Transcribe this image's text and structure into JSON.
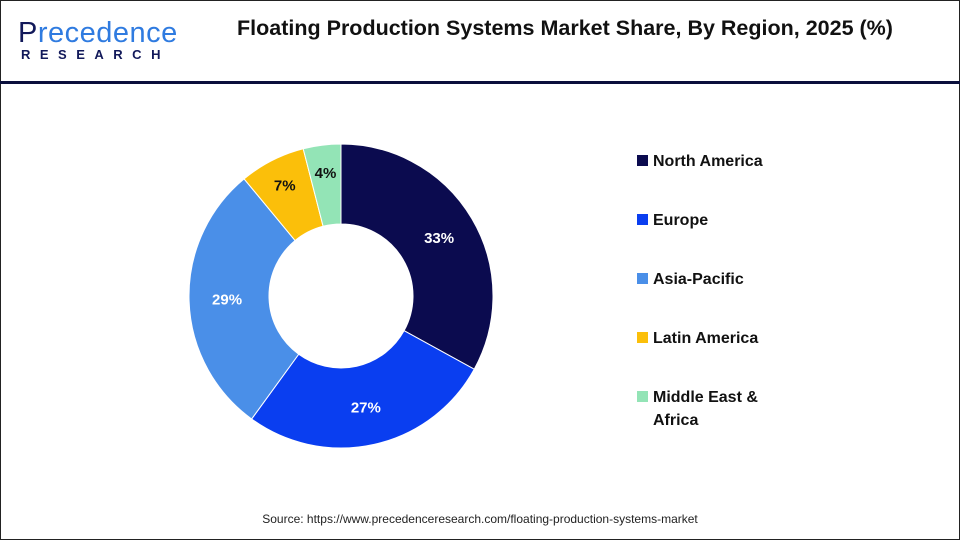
{
  "logo": {
    "text_top_1": "P",
    "text_top_2": "recedence",
    "text_bottom": "RESEARCH"
  },
  "title": "Floating Production Systems Market Share, By Region, 2025 (%)",
  "source": "Source: https://www.precedenceresearch.com/floating-production-systems-market",
  "chart_data": {
    "type": "pie",
    "variant": "donut",
    "title": "Floating Production Systems Market Share, By Region, 2025 (%)",
    "categories": [
      "North America",
      "Europe",
      "Asia-Pacific",
      "Latin America",
      "Middle East & Africa"
    ],
    "values": [
      33,
      27,
      29,
      7,
      4
    ],
    "data_labels": [
      "33%",
      "27%",
      "29%",
      "7%",
      "4%"
    ],
    "colors": [
      "#0b0b4f",
      "#0a3ef0",
      "#4a8fe8",
      "#fbbf0a",
      "#93e4b6"
    ],
    "label_colors": [
      "#ffffff",
      "#ffffff",
      "#ffffff",
      "#111111",
      "#111111"
    ],
    "legend_position": "right",
    "unit": "%"
  }
}
